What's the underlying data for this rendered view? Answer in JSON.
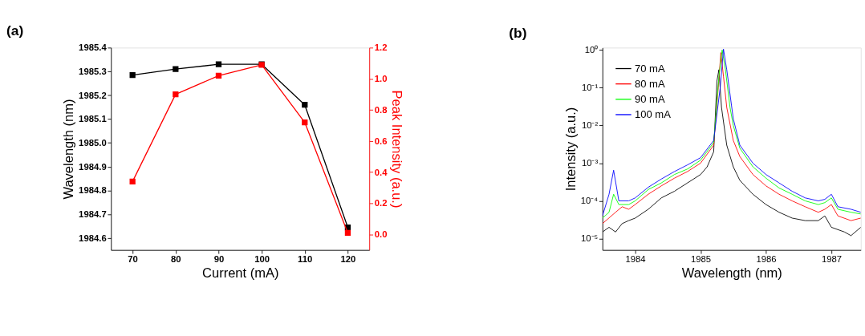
{
  "chart_data": [
    {
      "type": "line",
      "title": "(a)",
      "xlabel": "Current (mA)",
      "ylabel": "Wavelength (nm)",
      "y2label": "Peak Intensity (a.u.)",
      "marker": "square",
      "legend": false,
      "grid": false,
      "x": [
        70,
        80,
        90,
        100,
        110,
        120
      ],
      "xlim": [
        65,
        125
      ],
      "xticks": [
        70,
        80,
        90,
        100,
        110,
        120
      ],
      "ylim": [
        1984.55,
        1985.4
      ],
      "yticks": [
        1984.6,
        1984.7,
        1984.8,
        1984.9,
        {
          "value": 1985,
          "label": "1985.0"
        },
        1985.1,
        1985.2,
        1985.3,
        1985.4
      ],
      "y2lim": [
        -0.1,
        1.2
      ],
      "y2ticks": [
        {
          "value": 0,
          "label": "0.0"
        },
        0.2,
        0.4,
        0.6,
        0.8,
        {
          "value": 1,
          "label": "1.0"
        },
        1.2
      ],
      "series": [
        {
          "color": "#000000",
          "values": [
            1985.285,
            1985.31,
            1985.33,
            1985.33,
            1985.16,
            1984.645
          ]
        },
        {
          "color": "#ff0000",
          "axis": "y2",
          "values": [
            0.34,
            0.9,
            1.02,
            1.09,
            0.72,
            0.01
          ]
        }
      ]
    },
    {
      "type": "line",
      "title": "(b)",
      "xlabel": "Wavelength (nm)",
      "ylabel": "Intensity (a.u.)",
      "log": "y",
      "legend": "top left",
      "marker": "none",
      "grid": false,
      "xlim": [
        1983.5,
        1987.45
      ],
      "xticks": [
        1984,
        1985,
        1986,
        1987
      ],
      "ylim": [
        5e-06,
        1.15
      ],
      "yticks": [
        {
          "value": 1e-05,
          "label": "10⁻⁵"
        },
        {
          "value": 0.0001,
          "label": "10⁻⁴"
        },
        {
          "value": 0.001,
          "label": "10⁻³"
        },
        {
          "value": 0.01,
          "label": "10⁻²"
        },
        {
          "value": 0.1,
          "label": "10⁻¹"
        },
        {
          "value": 1,
          "label": "10⁰"
        }
      ],
      "series": [
        {
          "name": "70 mA",
          "color": "#000000",
          "x": [
            1983.5,
            1983.6,
            1983.7,
            1983.8,
            1983.9,
            1984.0,
            1984.2,
            1984.4,
            1984.6,
            1984.8,
            1985.0,
            1985.1,
            1985.2,
            1985.25,
            1985.28,
            1985.32,
            1985.4,
            1985.5,
            1985.6,
            1985.8,
            1986.0,
            1986.2,
            1986.4,
            1986.6,
            1986.8,
            1986.9,
            1987.0,
            1987.2,
            1987.3,
            1987.45
          ],
          "values": [
            1.5e-05,
            2e-05,
            1.5e-05,
            2.5e-05,
            3e-05,
            3.5e-05,
            6e-05,
            0.00012,
            0.00018,
            0.0003,
            0.0005,
            0.0008,
            0.002,
            0.15,
            0.3,
            0.03,
            0.003,
            0.0008,
            0.00035,
            0.00015,
            8e-05,
            5e-05,
            3.5e-05,
            3e-05,
            3e-05,
            4e-05,
            2e-05,
            1.5e-05,
            1.2e-05,
            2e-05
          ]
        },
        {
          "name": "80 mA",
          "color": "#ff0000",
          "x": [
            1983.5,
            1983.7,
            1983.8,
            1983.9,
            1984.0,
            1984.2,
            1984.4,
            1984.6,
            1984.8,
            1985.0,
            1985.2,
            1985.27,
            1985.31,
            1985.35,
            1985.4,
            1985.5,
            1985.6,
            1985.8,
            1986.0,
            1986.2,
            1986.4,
            1986.6,
            1986.8,
            1986.9,
            1987.0,
            1987.1,
            1987.3,
            1987.45
          ],
          "values": [
            2.5e-05,
            5e-05,
            7e-05,
            6e-05,
            8e-05,
            0.00015,
            0.00025,
            0.0004,
            0.0006,
            0.001,
            0.003,
            0.1,
            0.85,
            0.2,
            0.03,
            0.004,
            0.0015,
            0.0005,
            0.00025,
            0.00015,
            0.0001,
            7e-05,
            5e-05,
            6e-05,
            8e-05,
            4e-05,
            3e-05,
            3.5e-05
          ]
        },
        {
          "name": "90 mA",
          "color": "#00ff00",
          "x": [
            1983.5,
            1983.6,
            1983.67,
            1983.75,
            1983.9,
            1984.0,
            1984.2,
            1984.4,
            1984.6,
            1984.8,
            1985.0,
            1985.2,
            1985.28,
            1985.33,
            1985.38,
            1985.45,
            1985.5,
            1985.6,
            1985.8,
            1986.0,
            1986.2,
            1986.4,
            1986.6,
            1986.8,
            1986.9,
            1987.0,
            1987.1,
            1987.3,
            1987.45
          ],
          "values": [
            3.5e-05,
            5e-05,
            0.00015,
            8e-05,
            8e-05,
            0.0001,
            0.0002,
            0.0003,
            0.0005,
            0.0007,
            0.0012,
            0.0035,
            0.2,
            1.0,
            0.3,
            0.03,
            0.01,
            0.0025,
            0.0008,
            0.0004,
            0.00022,
            0.00015,
            0.0001,
            8e-05,
            9e-05,
            0.00012,
            6e-05,
            5e-05,
            4.5e-05
          ]
        },
        {
          "name": "100 mA",
          "color": "#0000ff",
          "x": [
            1983.5,
            1983.6,
            1983.67,
            1983.75,
            1983.9,
            1984.0,
            1984.2,
            1984.4,
            1984.6,
            1984.8,
            1985.0,
            1985.2,
            1985.3,
            1985.35,
            1985.4,
            1985.5,
            1985.6,
            1985.8,
            1986.0,
            1986.2,
            1986.4,
            1986.6,
            1986.8,
            1986.9,
            1987.0,
            1987.1,
            1987.3,
            1987.45
          ],
          "values": [
            4e-05,
            0.00015,
            0.00065,
            0.0001,
            0.0001,
            0.00012,
            0.00023,
            0.00038,
            0.0006,
            0.0009,
            0.0014,
            0.004,
            0.1,
            1.05,
            0.3,
            0.015,
            0.003,
            0.001,
            0.0005,
            0.0003,
            0.00018,
            0.00012,
            0.0001,
            0.00011,
            0.00015,
            7e-05,
            6e-05,
            5e-05
          ]
        }
      ]
    }
  ]
}
